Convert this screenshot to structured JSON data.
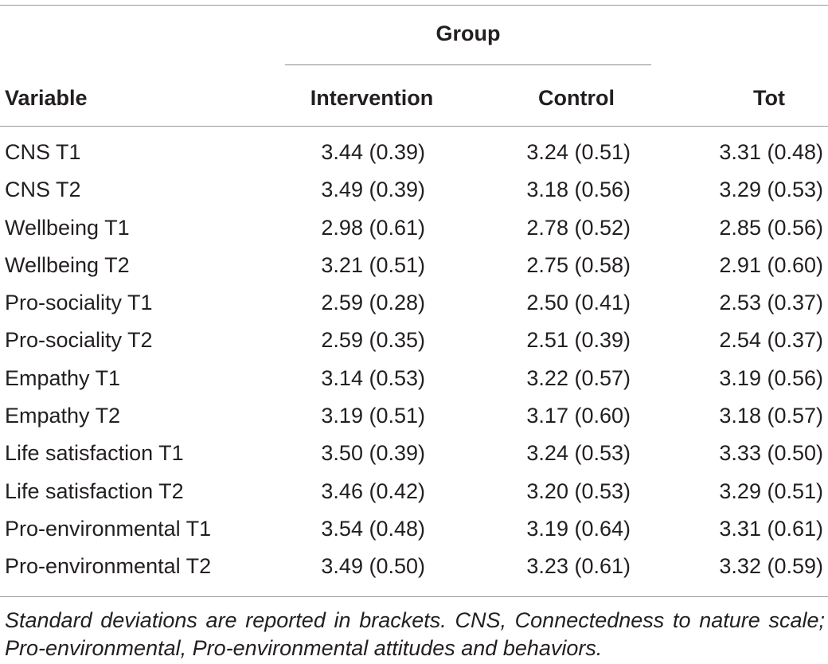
{
  "table": {
    "group_label": "Group",
    "headers": {
      "variable": "Variable",
      "intervention": "Intervention",
      "control": "Control",
      "tot": "Tot"
    },
    "rows": [
      {
        "variable": "CNS T1",
        "intervention": "3.44 (0.39)",
        "control": "3.24 (0.51)",
        "tot": "3.31 (0.48)"
      },
      {
        "variable": "CNS T2",
        "intervention": "3.49 (0.39)",
        "control": "3.18 (0.56)",
        "tot": "3.29 (0.53)"
      },
      {
        "variable": "Wellbeing T1",
        "intervention": "2.98 (0.61)",
        "control": "2.78 (0.52)",
        "tot": "2.85 (0.56)"
      },
      {
        "variable": "Wellbeing T2",
        "intervention": "3.21 (0.51)",
        "control": "2.75 (0.58)",
        "tot": "2.91 (0.60)"
      },
      {
        "variable": "Pro-sociality T1",
        "intervention": "2.59 (0.28)",
        "control": "2.50 (0.41)",
        "tot": "2.53 (0.37)"
      },
      {
        "variable": "Pro-sociality T2",
        "intervention": "2.59 (0.35)",
        "control": "2.51 (0.39)",
        "tot": "2.54 (0.37)"
      },
      {
        "variable": "Empathy T1",
        "intervention": "3.14 (0.53)",
        "control": "3.22 (0.57)",
        "tot": "3.19 (0.56)"
      },
      {
        "variable": "Empathy T2",
        "intervention": "3.19 (0.51)",
        "control": "3.17 (0.60)",
        "tot": "3.18 (0.57)"
      },
      {
        "variable": "Life satisfaction T1",
        "intervention": "3.50 (0.39)",
        "control": "3.24 (0.53)",
        "tot": "3.33 (0.50)"
      },
      {
        "variable": "Life satisfaction T2",
        "intervention": "3.46 (0.42)",
        "control": "3.20 (0.53)",
        "tot": "3.29 (0.51)"
      },
      {
        "variable": "Pro-environmental T1",
        "intervention": "3.54 (0.48)",
        "control": "3.19 (0.64)",
        "tot": "3.31 (0.61)"
      },
      {
        "variable": "Pro-environmental T2",
        "intervention": "3.49 (0.50)",
        "control": "3.23 (0.61)",
        "tot": "3.32 (0.59)"
      }
    ],
    "footnote": "Standard deviations are reported in brackets. CNS, Connectedness to nature scale; Pro-environmental, Pro-environmental attitudes and behaviors."
  }
}
